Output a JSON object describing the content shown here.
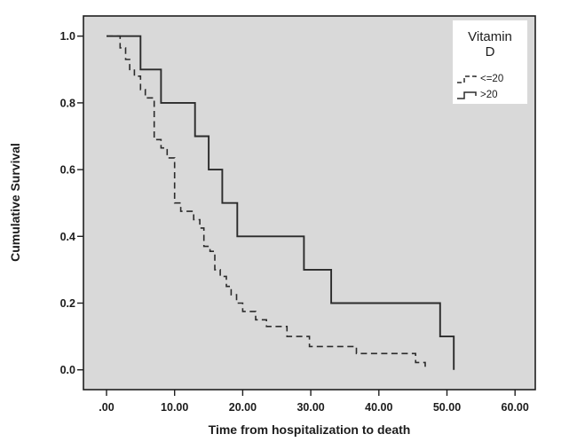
{
  "figure": {
    "colors": {
      "outer_background": "#ffffff",
      "plot_background": "#d9d9d9",
      "plot_border": "#1f1f1f",
      "line": "#2b2b2b",
      "text": "#1c1c1c",
      "legend_background": "#ffffff"
    }
  },
  "chart_data": {
    "type": "line",
    "subtype": "kaplan-meier-step",
    "title": "",
    "xlabel": "Time from hospitalization to death",
    "ylabel": "Cumulative Survival",
    "xlim": [
      -3.4,
      63
    ],
    "ylim": [
      -0.06,
      1.06
    ],
    "x_ticks": [
      0,
      10,
      20,
      30,
      40,
      50,
      60
    ],
    "x_tick_labels": [
      ".00",
      "10.00",
      "20.00",
      "30.00",
      "40.00",
      "50.00",
      "60.00"
    ],
    "y_ticks": [
      0.0,
      0.2,
      0.4,
      0.6,
      0.8,
      1.0
    ],
    "y_tick_labels": [
      "0.0",
      "0.2",
      "0.4",
      "0.6",
      "0.8",
      "1.0"
    ],
    "grid": false,
    "legend": {
      "title_lines": [
        "Vitamin",
        "D"
      ],
      "position": "top-right",
      "entries": [
        {
          "label": "<=20",
          "style": "dashed"
        },
        {
          "label": ">20",
          "style": "solid"
        }
      ]
    },
    "series": [
      {
        "name": "<=20",
        "style": "dashed",
        "points": [
          [
            0,
            1.0
          ],
          [
            2,
            0.965
          ],
          [
            2.8,
            0.93
          ],
          [
            3.4,
            0.9
          ],
          [
            4.1,
            0.88
          ],
          [
            5,
            0.84
          ],
          [
            5.7,
            0.815
          ],
          [
            7,
            0.69
          ],
          [
            8,
            0.665
          ],
          [
            8.9,
            0.635
          ],
          [
            10,
            0.5
          ],
          [
            10.9,
            0.475
          ],
          [
            12.8,
            0.45
          ],
          [
            13.7,
            0.425
          ],
          [
            14.3,
            0.37
          ],
          [
            15.2,
            0.355
          ],
          [
            15.9,
            0.3
          ],
          [
            16.7,
            0.28
          ],
          [
            17.6,
            0.25
          ],
          [
            18.3,
            0.225
          ],
          [
            19.1,
            0.2
          ],
          [
            20,
            0.175
          ],
          [
            21.9,
            0.15
          ],
          [
            23.5,
            0.13
          ],
          [
            26.5,
            0.1
          ],
          [
            29.8,
            0.07
          ],
          [
            36.7,
            0.049
          ],
          [
            45.4,
            0.022
          ],
          [
            46.8,
            0
          ]
        ]
      },
      {
        "name": ">20",
        "style": "solid",
        "points": [
          [
            0,
            1.0
          ],
          [
            5,
            0.9
          ],
          [
            8,
            0.8
          ],
          [
            13,
            0.7
          ],
          [
            15,
            0.6
          ],
          [
            17,
            0.5
          ],
          [
            19.2,
            0.4
          ],
          [
            29,
            0.3
          ],
          [
            33,
            0.2
          ],
          [
            49,
            0.1
          ],
          [
            51,
            0
          ]
        ]
      }
    ]
  }
}
